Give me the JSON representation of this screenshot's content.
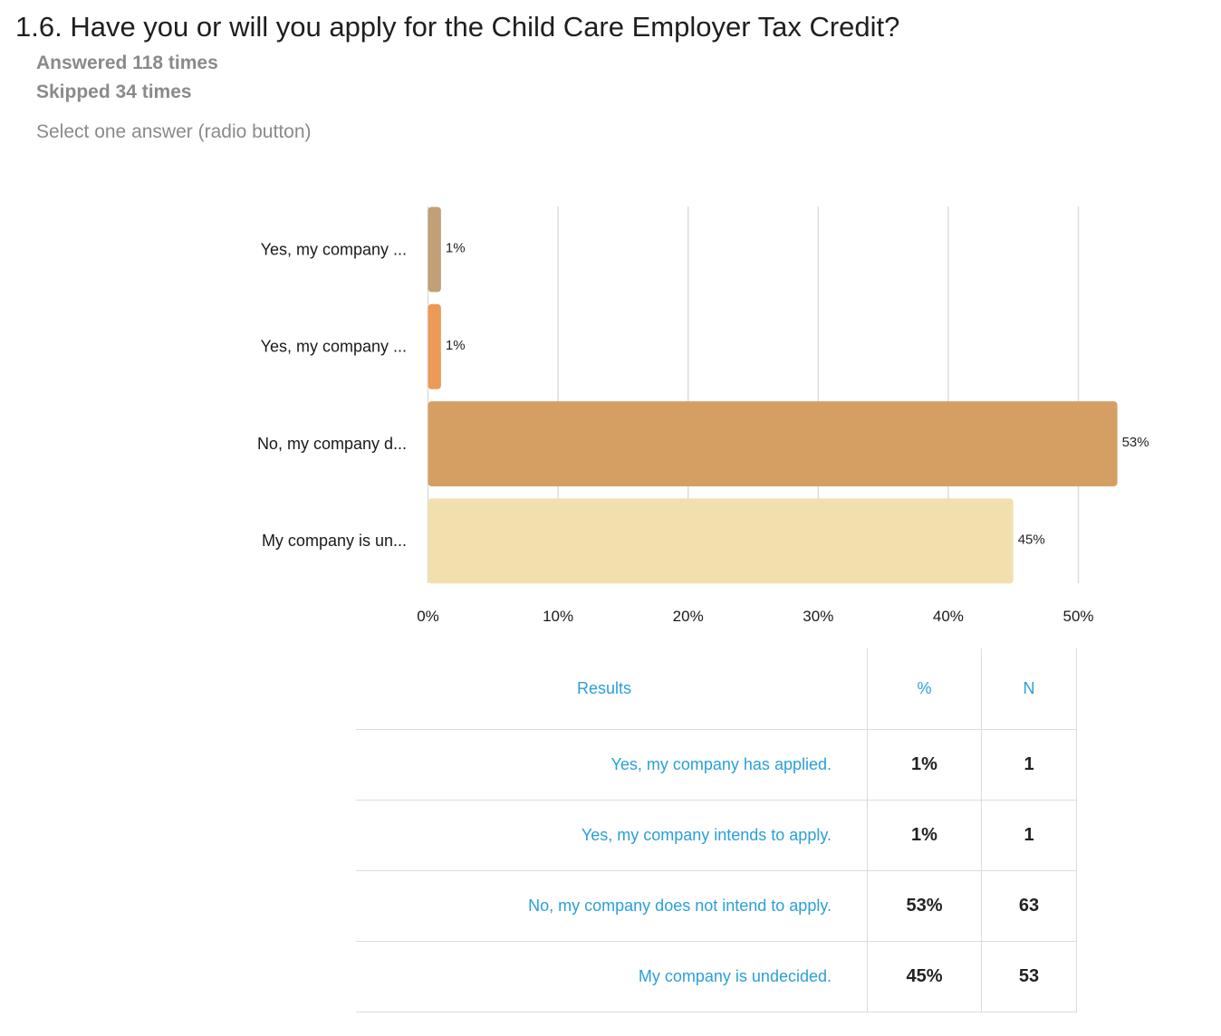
{
  "question": {
    "title": "1.6. Have you or will you apply for the Child Care Employer Tax Credit?",
    "answered": "Answered 118 times",
    "skipped": "Skipped 34 times",
    "instruction": "Select one answer (radio button)"
  },
  "chart_data": {
    "type": "bar",
    "orientation": "horizontal",
    "categories": [
      "Yes, my company ...",
      "Yes, my company ...",
      "No, my company d...",
      "My company is un..."
    ],
    "values": [
      1,
      1,
      53,
      45
    ],
    "value_labels": [
      "1%",
      "1%",
      "53%",
      "45%"
    ],
    "colors": [
      "#c19f77",
      "#ec9a58",
      "#d59f63",
      "#f1dfad"
    ],
    "xlim": [
      0,
      55
    ],
    "xticks": [
      0,
      10,
      20,
      30,
      40,
      50
    ],
    "xtick_labels": [
      "0%",
      "10%",
      "20%",
      "30%",
      "40%",
      "50%"
    ],
    "grid": true,
    "title": "",
    "xlabel": "",
    "ylabel": ""
  },
  "table": {
    "headers": {
      "answer": "Results",
      "percent": "%",
      "n": "N"
    },
    "rows": [
      {
        "answer": "Yes, my company has applied.",
        "percent": "1%",
        "n": "1"
      },
      {
        "answer": "Yes, my company intends to apply.",
        "percent": "1%",
        "n": "1"
      },
      {
        "answer": "No, my company does not intend to apply.",
        "percent": "53%",
        "n": "63"
      },
      {
        "answer": "My company is undecided.",
        "percent": "45%",
        "n": "53"
      }
    ]
  }
}
